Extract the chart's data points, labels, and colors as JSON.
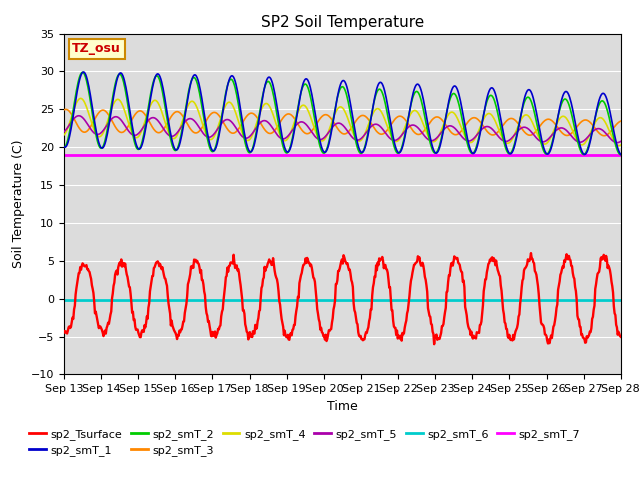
{
  "title": "SP2 Soil Temperature",
  "xlabel": "Time",
  "ylabel": "Soil Temperature (C)",
  "ylim": [
    -10,
    35
  ],
  "yticks": [
    -10,
    -5,
    0,
    5,
    10,
    15,
    20,
    25,
    30,
    35
  ],
  "n_days": 15,
  "xtick_labels": [
    "Sep 13",
    "Sep 14",
    "Sep 15",
    "Sep 16",
    "Sep 17",
    "Sep 18",
    "Sep 19",
    "Sep 20",
    "Sep 21",
    "Sep 22",
    "Sep 23",
    "Sep 24",
    "Sep 25",
    "Sep 26",
    "Sep 27",
    "Sep 28"
  ],
  "colors": {
    "sp2_Tsurface": "#FF0000",
    "sp2_smT_1": "#0000CC",
    "sp2_smT_2": "#00CC00",
    "sp2_smT_3": "#FF8800",
    "sp2_smT_4": "#DDDD00",
    "sp2_smT_5": "#AA00AA",
    "sp2_smT_6": "#00CCCC",
    "sp2_smT_7": "#FF00FF"
  },
  "annotation_text": "TZ_osu",
  "annotation_color": "#CC0000",
  "annotation_bg": "#FFFFCC",
  "annotation_border": "#CC8800",
  "plot_bg": "#DCDCDC",
  "fig_bg": "#FFFFFF",
  "figsize": [
    6.4,
    4.8
  ],
  "dpi": 100
}
